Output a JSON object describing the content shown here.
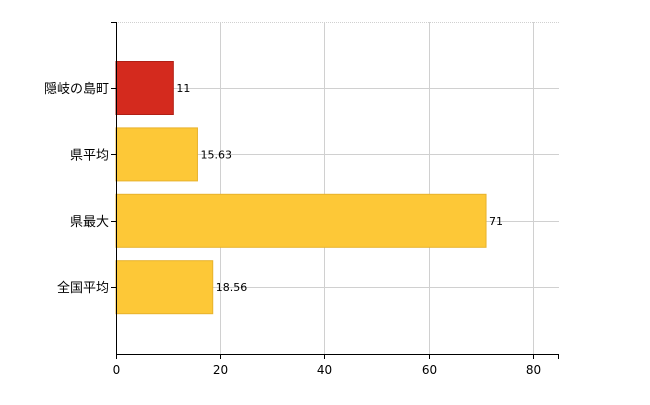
{
  "chart_data": {
    "type": "bar",
    "orientation": "horizontal",
    "categories": [
      "隠岐の島町",
      "県平均",
      "県最大",
      "全国平均"
    ],
    "values": [
      11,
      15.63,
      71,
      18.56
    ],
    "value_labels": [
      "11",
      "15.63",
      "71",
      "18.56"
    ],
    "bar_colors": [
      "#d42a1e",
      "#fdc837",
      "#fdc837",
      "#fdc837"
    ],
    "bar_edge_colors": [
      "#b01f15",
      "#e8b22c",
      "#e8b22c",
      "#e8b22c"
    ],
    "xlim": [
      0,
      85
    ],
    "xticks": [
      0,
      20,
      40,
      60,
      80
    ],
    "xtick_labels": [
      "0",
      "20",
      "40",
      "60",
      "80"
    ],
    "grid": true,
    "grid_color": "#d0d0d0",
    "axis_color": "#000000",
    "legend": "none",
    "title": "",
    "xlabel": "",
    "ylabel": ""
  }
}
